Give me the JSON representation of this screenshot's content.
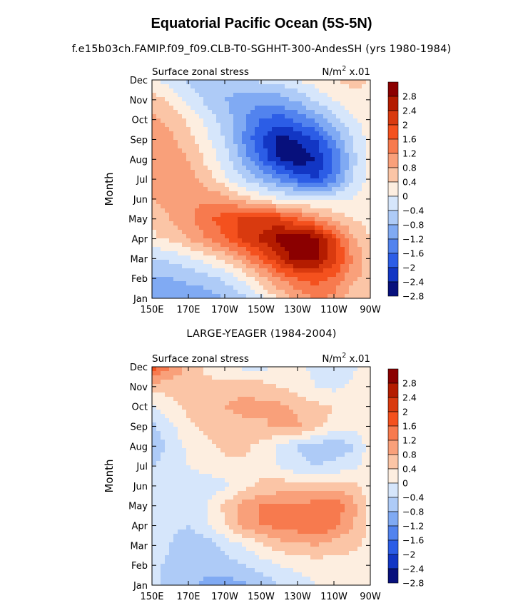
{
  "figure": {
    "title": "Equatorial Pacific Ocean (5S-5N)"
  },
  "chart_data": [
    {
      "type": "heatmap",
      "title": "f.e15b03ch.FAMIP.f09_f09.CLB-T0-SGHHT-300-AndesSH (yrs 1980-1984)",
      "left_label": "Surface zonal stress",
      "right_label": "N/m",
      "unit_exponent": "2",
      "unit_suffix": "x.01",
      "ylabel": "Month",
      "x_ticks": [
        "150E",
        "170E",
        "170W",
        "150W",
        "130W",
        "110W",
        "90W"
      ],
      "y_ticks": [
        "Jan",
        "Feb",
        "Mar",
        "Apr",
        "May",
        "Jun",
        "Jul",
        "Aug",
        "Sep",
        "Oct",
        "Nov",
        "Dec"
      ],
      "colorbar_labels": [
        "2.8",
        "2.4",
        "2",
        "1.6",
        "1.2",
        "0.8",
        "0.4",
        "0",
        "−0.4",
        "−0.8",
        "−1.2",
        "−1.6",
        "−2",
        "−2.4",
        "−2.8"
      ],
      "colorbar_colors": [
        "#8b0000",
        "#b41c00",
        "#d93a0f",
        "#f4511e",
        "#f77a4e",
        "#f9a07a",
        "#fbc5a6",
        "#fdeee0",
        "#d6e6fb",
        "#aecbf7",
        "#80aaf3",
        "#5283ee",
        "#2c5de6",
        "#1236c4",
        "#07107c"
      ],
      "levels": [
        -3.0,
        -2.6,
        -2.2,
        -1.8,
        -1.4,
        -1.0,
        -0.6,
        -0.2,
        0.2,
        0.6,
        1.0,
        1.4,
        1.8,
        2.2,
        2.6,
        3.0
      ],
      "grid_lon": [
        150,
        160,
        170,
        180,
        190,
        200,
        210,
        220,
        230,
        240,
        250,
        260,
        270
      ],
      "grid_month": [
        "Jan",
        "Feb",
        "Mar",
        "Apr",
        "May",
        "Jun",
        "Jul",
        "Aug",
        "Sep",
        "Oct",
        "Nov",
        "Dec"
      ],
      "values": [
        [
          -1.0,
          -1.4,
          -1.3,
          -1.2,
          -1.0,
          -0.7,
          -0.3,
          0.3,
          0.7,
          1.0,
          0.9,
          0.4,
          0.3
        ],
        [
          -1.1,
          -1.0,
          -0.9,
          -0.8,
          -0.5,
          -0.1,
          0.4,
          1.0,
          1.4,
          1.6,
          1.3,
          0.7,
          0.4
        ],
        [
          -0.6,
          -0.5,
          -0.3,
          0.0,
          0.3,
          0.8,
          1.5,
          2.2,
          2.8,
          2.7,
          2.0,
          1.0,
          0.3
        ],
        [
          0.1,
          0.3,
          0.6,
          1.0,
          1.4,
          1.9,
          2.3,
          2.8,
          3.0,
          2.8,
          1.8,
          0.7,
          0.2
        ],
        [
          0.3,
          0.6,
          0.9,
          1.3,
          1.6,
          1.9,
          2.0,
          1.8,
          1.4,
          0.9,
          0.5,
          0.2,
          0.0
        ],
        [
          0.6,
          0.8,
          0.9,
          0.9,
          0.8,
          0.4,
          0.1,
          -0.2,
          -0.3,
          -0.3,
          -0.3,
          -0.2,
          0.0
        ],
        [
          0.9,
          0.9,
          0.8,
          0.4,
          -0.1,
          -0.6,
          -1.0,
          -1.4,
          -1.9,
          -2.2,
          -1.6,
          -0.6,
          0.0
        ],
        [
          0.9,
          0.8,
          0.6,
          0.1,
          -0.4,
          -1.1,
          -1.9,
          -2.6,
          -2.9,
          -2.6,
          -1.8,
          -0.8,
          0.0
        ],
        [
          0.8,
          0.7,
          0.4,
          -0.1,
          -0.6,
          -1.4,
          -2.2,
          -2.8,
          -2.6,
          -2.2,
          -1.4,
          -0.6,
          0.0
        ],
        [
          0.7,
          0.5,
          0.1,
          -0.3,
          -0.8,
          -1.3,
          -1.8,
          -2.0,
          -1.7,
          -1.3,
          -0.8,
          -0.3,
          0.0
        ],
        [
          0.4,
          0.1,
          -0.3,
          -0.7,
          -1.0,
          -1.2,
          -1.3,
          -1.2,
          -0.9,
          -0.5,
          -0.2,
          0.1,
          0.1
        ],
        [
          -0.1,
          -0.4,
          -0.7,
          -0.8,
          -0.7,
          -0.6,
          -0.5,
          -0.4,
          -0.2,
          0.0,
          0.2,
          0.3,
          0.2
        ]
      ]
    },
    {
      "type": "heatmap",
      "title": "LARGE-YEAGER (1984-2004)",
      "left_label": "Surface zonal stress",
      "right_label": "N/m",
      "unit_exponent": "2",
      "unit_suffix": "x.01",
      "ylabel": "Month",
      "x_ticks": [
        "150E",
        "170E",
        "170W",
        "150W",
        "130W",
        "110W",
        "90W"
      ],
      "y_ticks": [
        "Jan",
        "Feb",
        "Mar",
        "Apr",
        "May",
        "Jun",
        "Jul",
        "Aug",
        "Sep",
        "Oct",
        "Nov",
        "Dec"
      ],
      "colorbar_labels": [
        "2.8",
        "2.4",
        "2",
        "1.6",
        "1.2",
        "0.8",
        "0.4",
        "0",
        "−0.4",
        "−0.8",
        "−1.2",
        "−1.6",
        "−2",
        "−2.4",
        "−2.8"
      ],
      "colorbar_colors": [
        "#8b0000",
        "#b41c00",
        "#d93a0f",
        "#f4511e",
        "#f77a4e",
        "#f9a07a",
        "#fbc5a6",
        "#fdeee0",
        "#d6e6fb",
        "#aecbf7",
        "#80aaf3",
        "#5283ee",
        "#2c5de6",
        "#1236c4",
        "#07107c"
      ],
      "levels": [
        -3.0,
        -2.6,
        -2.2,
        -1.8,
        -1.4,
        -1.0,
        -0.6,
        -0.2,
        0.2,
        0.6,
        1.0,
        1.4,
        1.8,
        2.2,
        2.6,
        3.0
      ],
      "grid_lon": [
        150,
        160,
        170,
        180,
        190,
        200,
        210,
        220,
        230,
        240,
        250,
        260,
        270
      ],
      "grid_month": [
        "Jan",
        "Feb",
        "Mar",
        "Apr",
        "May",
        "Jun",
        "Jul",
        "Aug",
        "Sep",
        "Oct",
        "Nov",
        "Dec"
      ],
      "values": [
        [
          -0.5,
          -0.7,
          -0.9,
          -1.1,
          -1.2,
          -1.1,
          -0.9,
          -0.6,
          -0.4,
          -0.2,
          -0.2,
          -0.1,
          0.0
        ],
        [
          -0.5,
          -0.7,
          -0.9,
          -0.9,
          -0.8,
          -0.6,
          -0.4,
          -0.2,
          -0.1,
          0.0,
          0.0,
          0.0,
          0.0
        ],
        [
          -0.3,
          -0.6,
          -0.9,
          -0.8,
          -0.5,
          -0.2,
          0.1,
          0.4,
          0.5,
          0.6,
          0.4,
          0.3,
          0.1
        ],
        [
          -0.3,
          -0.5,
          -0.6,
          -0.3,
          0.2,
          0.7,
          1.0,
          1.1,
          1.2,
          1.4,
          1.1,
          0.6,
          0.1
        ],
        [
          -0.3,
          -0.5,
          -0.5,
          -0.2,
          0.3,
          0.8,
          1.0,
          1.0,
          1.0,
          1.2,
          1.3,
          0.8,
          0.1
        ],
        [
          -0.4,
          -0.6,
          -0.6,
          -0.5,
          -0.3,
          0.0,
          0.3,
          0.4,
          0.4,
          0.5,
          0.4,
          0.3,
          0.0
        ],
        [
          -0.6,
          -0.4,
          -0.2,
          0.0,
          0.1,
          0.1,
          0.0,
          -0.2,
          -0.5,
          -0.6,
          -0.5,
          -0.3,
          0.0
        ],
        [
          -0.9,
          -0.5,
          -0.1,
          0.1,
          0.3,
          0.3,
          0.1,
          -0.3,
          -0.6,
          -0.8,
          -0.9,
          -0.7,
          0.0
        ],
        [
          -0.7,
          -0.3,
          0.1,
          0.3,
          0.4,
          0.5,
          0.5,
          0.7,
          0.7,
          0.3,
          0.1,
          -0.1,
          0.1
        ],
        [
          -0.3,
          0.1,
          0.3,
          0.4,
          0.6,
          0.7,
          0.7,
          0.7,
          0.5,
          0.3,
          0.2,
          0.1,
          0.1
        ],
        [
          0.4,
          0.3,
          0.2,
          0.3,
          0.5,
          0.5,
          0.4,
          0.2,
          0.0,
          -0.2,
          -0.3,
          -0.1,
          0.1
        ],
        [
          1.6,
          1.1,
          0.5,
          0.1,
          -0.2,
          -0.3,
          -0.3,
          -0.2,
          -0.1,
          -0.3,
          -0.5,
          -0.3,
          0.0
        ]
      ]
    }
  ]
}
